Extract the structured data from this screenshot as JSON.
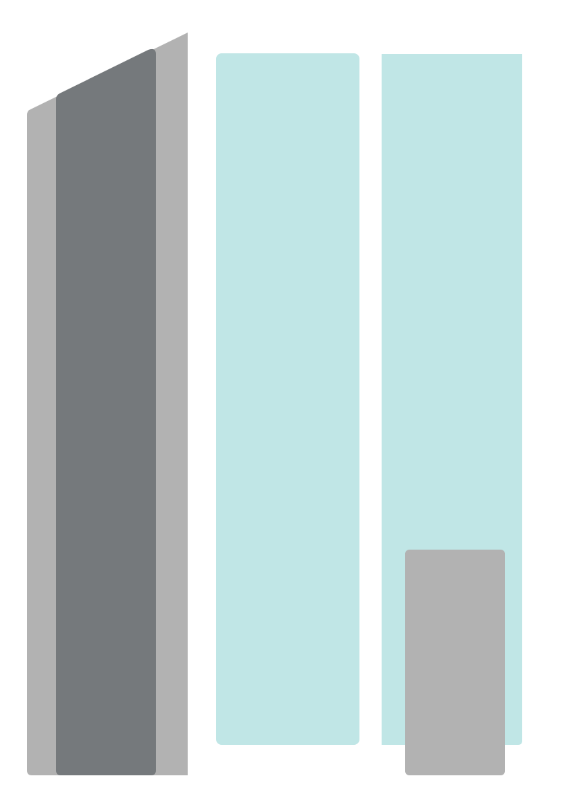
{
  "colors": {
    "background": "#ffffff",
    "light_gray": "#b2b2b2",
    "dark_gray": "#75797c",
    "pale_teal": "#c0e6e6"
  },
  "shapes": [
    "tall-building-back",
    "tall-building-front",
    "teal-window-panel",
    "teal-door-panel",
    "gray-door"
  ]
}
